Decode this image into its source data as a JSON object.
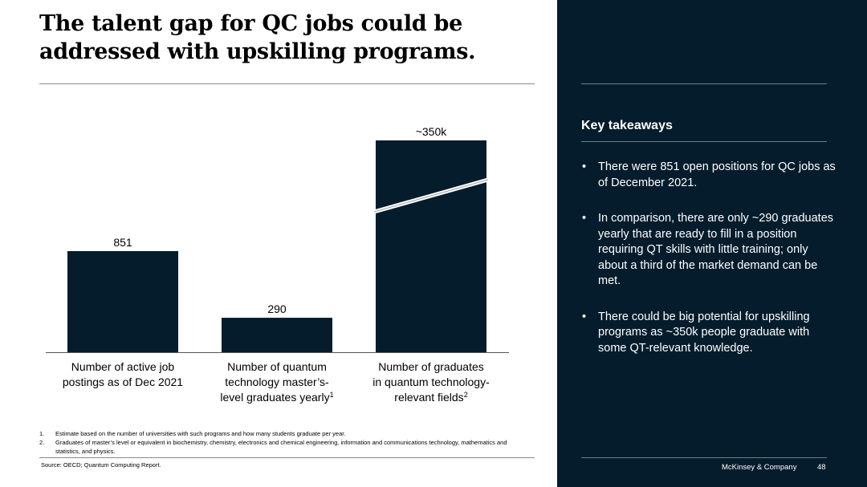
{
  "title": "The talent gap for QC jobs could be addressed with upskilling programs.",
  "chart_data": {
    "type": "bar",
    "title": "",
    "categories": [
      "Number of active job postings as of Dec 2021",
      "Number of quantum technology master’s-level graduates yearly",
      "Number of graduates in quantum technology-relevant fields"
    ],
    "category_lines": [
      [
        "Number of active job",
        "postings as of Dec 2021"
      ],
      [
        "Number of quantum",
        "technology master’s-",
        "level graduates yearly"
      ],
      [
        "Number of graduates",
        "in quantum technology-",
        "relevant fields"
      ]
    ],
    "category_notes": [
      "",
      "1",
      "2"
    ],
    "values": [
      851,
      290,
      350000
    ],
    "value_labels": [
      "851",
      "290",
      "~350k"
    ],
    "axis_break": {
      "bar_index": 2,
      "present": true
    },
    "bar_color": "#051c2c",
    "xlabel": "",
    "ylabel": "",
    "grid": false
  },
  "footnotes": [
    {
      "num": "1.",
      "text": "Estimate based on the number of universities with such programs and how many students graduate per year."
    },
    {
      "num": "2.",
      "text": "Graduates of master’s level or equivalent in biochemistry, chemistry, electronics and chemical engineering, information and communications technology, mathematics and statistics, and physics."
    }
  ],
  "source": "Source: OECD; Quantum Computing Report.",
  "sidebar": {
    "heading": "Key takeaways",
    "bullet_glyph": "•",
    "bullets": [
      "There were 851 open positions for QC jobs as of December 2021.",
      "In comparison, there are only ~290 graduates yearly that are ready to fill in a position requiring QT skills with little training; only about a third of the market demand can be met.",
      "There could be big potential for upskilling programs as ~350k people graduate with some QT-relevant knowledge."
    ],
    "brand": "McKinsey & Company",
    "page": "48"
  },
  "colors": {
    "navy": "#051c2c",
    "rule": "#8a8a8a"
  }
}
